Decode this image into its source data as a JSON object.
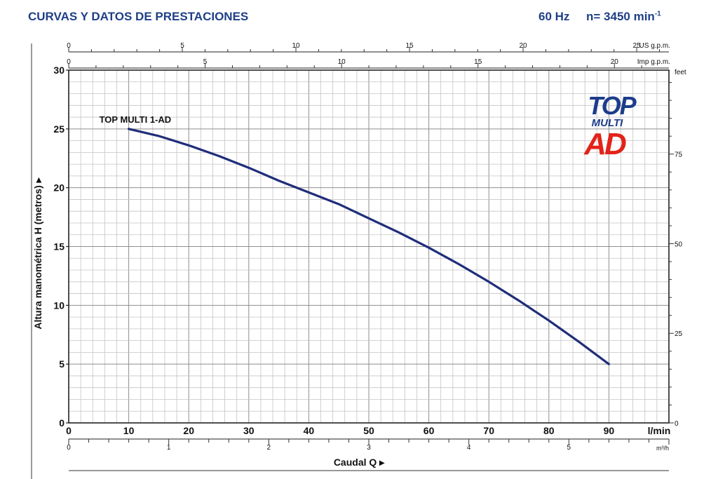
{
  "header": {
    "title": "CURVAS Y DATOS DE PRESTACIONES",
    "frequency": "60 Hz",
    "speed_prefix": "n= 3450 min",
    "speed_sup": "-1"
  },
  "logo": {
    "line1": "TOP",
    "line2": "MULTI",
    "line3": "AD",
    "color_blue": "#1d3d8c",
    "color_red": "#e2231a"
  },
  "chart_data": {
    "type": "line",
    "series": [
      {
        "name": "TOP MULTI 1-AD",
        "color": "#1f2d7a",
        "x": [
          10,
          15,
          20,
          25,
          30,
          35,
          40,
          45,
          50,
          55,
          60,
          65,
          70,
          75,
          80,
          85,
          90
        ],
        "y": [
          25.0,
          24.4,
          23.6,
          22.7,
          21.7,
          20.6,
          19.6,
          18.6,
          17.4,
          16.2,
          14.9,
          13.5,
          12.0,
          10.4,
          8.7,
          6.9,
          5.0
        ]
      }
    ],
    "xlim": [
      0,
      100
    ],
    "ylim": [
      0,
      30
    ],
    "grid": true,
    "ylabel": "Altura manométrica H (metros)",
    "xlabel": "Caudal Q",
    "y_ticks": [
      0,
      5,
      10,
      15,
      20,
      25,
      30
    ],
    "x_ticks": [
      0,
      10,
      20,
      30,
      40,
      50,
      60,
      70,
      80,
      90
    ],
    "x_unit": "l/min",
    "m3h_ticks": [
      0,
      1,
      2,
      3,
      4,
      5
    ],
    "m3h_unit": "m³/h",
    "usgpm_ticks": [
      0,
      5,
      10,
      15,
      20,
      25
    ],
    "usgpm_unit": "US g.p.m.",
    "impgpm_ticks": [
      0,
      5,
      10,
      15,
      20
    ],
    "impgpm_unit": "Imp g.p.m.",
    "feet_ticks": [
      0,
      25,
      50,
      75
    ],
    "feet_unit": "feet"
  }
}
